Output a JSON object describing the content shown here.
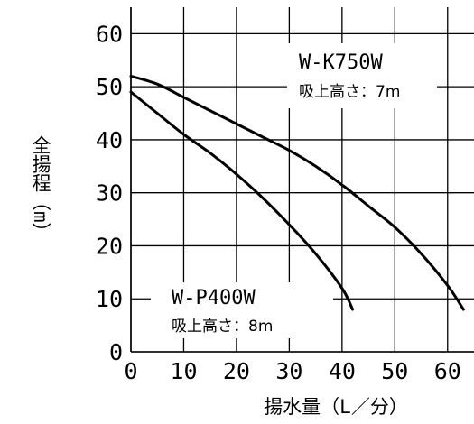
{
  "chart_data": {
    "type": "line",
    "xlabel": "揚水量（L／分）",
    "ylabel": "全揚程（m）",
    "xlim": [
      0,
      65
    ],
    "ylim": [
      0,
      65
    ],
    "x_ticks": [
      "0",
      "10",
      "20",
      "30",
      "40",
      "50",
      "60"
    ],
    "y_ticks": [
      "0",
      "10",
      "20",
      "30",
      "40",
      "50",
      "60"
    ],
    "grid": true,
    "legend": "none",
    "series": [
      {
        "name": "W-K750W",
        "suction": "吸上高さ：7m",
        "points": [
          [
            0,
            52
          ],
          [
            5,
            50.5
          ],
          [
            10,
            48
          ],
          [
            15,
            45.5
          ],
          [
            20,
            43
          ],
          [
            25,
            40.5
          ],
          [
            30,
            38
          ],
          [
            35,
            35
          ],
          [
            40,
            31.5
          ],
          [
            45,
            27.5
          ],
          [
            50,
            23.5
          ],
          [
            55,
            18.5
          ],
          [
            60,
            12.5
          ],
          [
            63,
            8
          ]
        ]
      },
      {
        "name": "W-P400W",
        "suction": "吸上高さ：8m",
        "points": [
          [
            0,
            49
          ],
          [
            5,
            45
          ],
          [
            10,
            41
          ],
          [
            15,
            37.5
          ],
          [
            20,
            33.5
          ],
          [
            25,
            29
          ],
          [
            30,
            24
          ],
          [
            35,
            18.5
          ],
          [
            40,
            12
          ],
          [
            42,
            8
          ]
        ]
      }
    ]
  }
}
